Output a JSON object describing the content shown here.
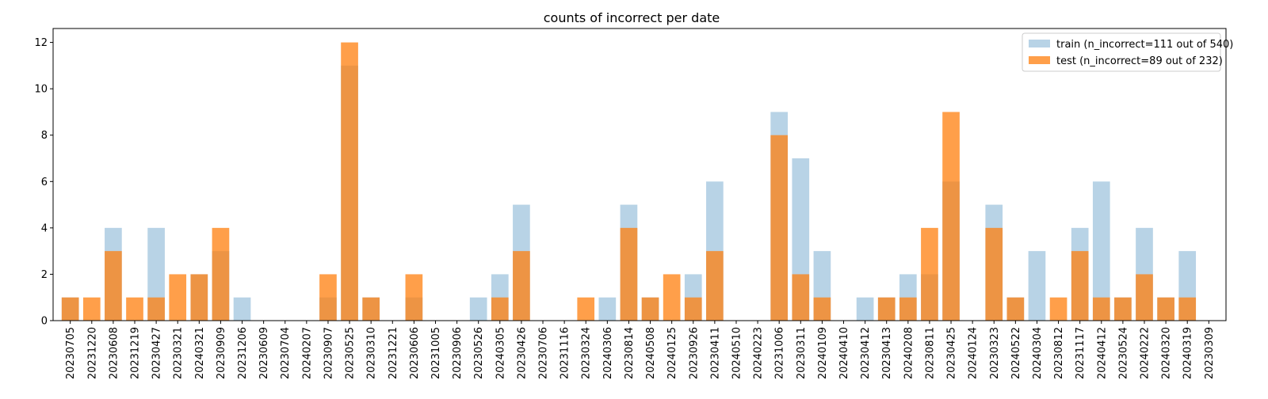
{
  "chart_data": {
    "type": "bar",
    "title": "counts of incorrect per date",
    "xlabel": "",
    "ylabel": "",
    "ylim": [
      0,
      12.6
    ],
    "yticks": [
      0,
      2,
      4,
      6,
      8,
      10,
      12
    ],
    "grid": false,
    "legend_position": "top-right",
    "categories": [
      "20230705",
      "20231220",
      "20230608",
      "20231219",
      "20230427",
      "20230321",
      "20240321",
      "20230909",
      "20231206",
      "20230609",
      "20230704",
      "20240207",
      "20230907",
      "20230525",
      "20230310",
      "20231221",
      "20230606",
      "20231005",
      "20230906",
      "20230526",
      "20240305",
      "20230426",
      "20230706",
      "20231116",
      "20230324",
      "20240306",
      "20230814",
      "20240508",
      "20240125",
      "20230926",
      "20230411",
      "20240510",
      "20240223",
      "20231006",
      "20230311",
      "20240109",
      "20240410",
      "20230412",
      "20230413",
      "20240208",
      "20230811",
      "20230425",
      "20240124",
      "20230323",
      "20240522",
      "20240304",
      "20230812",
      "20231117",
      "20240412",
      "20230524",
      "20240222",
      "20240320",
      "20240319",
      "20230309"
    ],
    "series": [
      {
        "name": "train (n_incorrect=111 out of 540)",
        "color": "#a6c8e0",
        "opacity": 0.8,
        "values": [
          1,
          0,
          4,
          0,
          4,
          0,
          2,
          3,
          1,
          0,
          0,
          0,
          1,
          11,
          1,
          0,
          1,
          0,
          0,
          1,
          2,
          5,
          0,
          0,
          0,
          1,
          5,
          1,
          0,
          2,
          6,
          0,
          0,
          9,
          7,
          3,
          0,
          1,
          1,
          2,
          2,
          6,
          0,
          5,
          1,
          3,
          0,
          4,
          6,
          1,
          4,
          1,
          3,
          0
        ]
      },
      {
        "name": "test (n_incorrect=89 out of 232)",
        "color": "#ff7f0e",
        "opacity": 0.75,
        "values": [
          1,
          1,
          3,
          1,
          1,
          2,
          2,
          4,
          0,
          0,
          0,
          0,
          2,
          12,
          1,
          0,
          2,
          0,
          0,
          0,
          1,
          3,
          0,
          0,
          1,
          0,
          4,
          1,
          2,
          1,
          3,
          0,
          0,
          8,
          2,
          1,
          0,
          0,
          1,
          1,
          4,
          9,
          0,
          4,
          1,
          0,
          1,
          3,
          1,
          1,
          2,
          1,
          1,
          0
        ]
      }
    ]
  }
}
